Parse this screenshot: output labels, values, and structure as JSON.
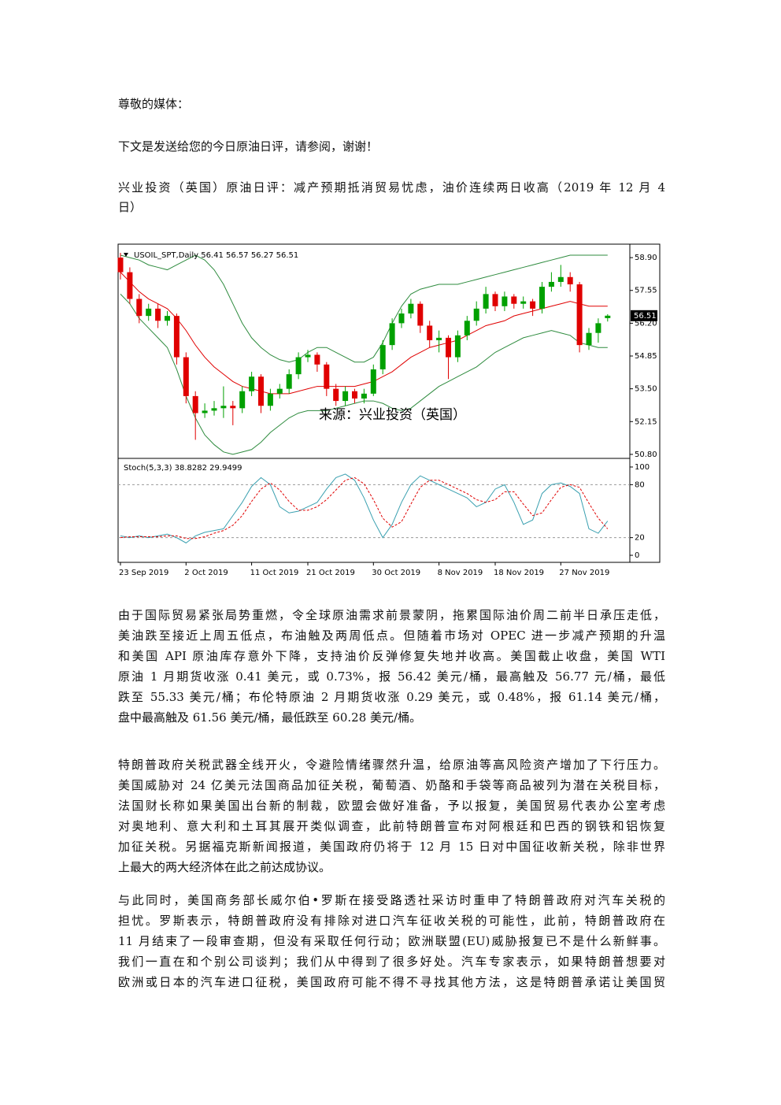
{
  "paragraphs": [
    [
      "尊敬的媒体："
    ],
    [
      "下文是发送给您的今日原油日评，请参阅，谢谢！"
    ],
    [
      "兴业投资（英国）原油日评：减产预期抵消贸易忧虑，油价连续两日收高（2019 年 12 月 4",
      "日）"
    ]
  ],
  "chart": {
    "type": "candlestick",
    "header": "USOIL_SPT,Daily  56.41 56.57 56.27 56.51",
    "source": "来源：兴业投资（英国）",
    "ylim": [
      50.7,
      59.39
    ],
    "yticks": [
      {
        "value": 58.9,
        "label": "58.90"
      },
      57.55,
      {
        "value": 56.2,
        "label": "56.20"
      },
      54.85,
      {
        "value": 53.5,
        "label": "53.50"
      },
      52.15,
      {
        "value": 50.8,
        "label": "50.80"
      }
    ],
    "xticks": [
      {
        "value": 0,
        "label": "23 Sep 2019"
      },
      {
        "value": 7,
        "label": "2 Oct 2019"
      },
      {
        "value": 14,
        "label": "11 Oct 2019"
      },
      {
        "value": 20,
        "label": "21 Oct 2019"
      },
      {
        "value": 27,
        "label": "30 Oct 2019"
      },
      {
        "value": 34,
        "label": "8 Nov 2019"
      },
      {
        "value": 40,
        "label": "18 Nov 2019"
      },
      {
        "value": 47,
        "label": "27 Nov 2019"
      }
    ],
    "up_color": "#00a000",
    "down_color": "#e00000",
    "candles": [
      [
        58.9,
        59.1,
        58.0,
        58.3
      ],
      [
        58.3,
        58.5,
        57.0,
        57.2
      ],
      [
        57.2,
        57.4,
        56.2,
        56.5
      ],
      [
        56.5,
        57.0,
        56.3,
        56.8
      ],
      [
        56.8,
        57.0,
        56.0,
        56.3
      ],
      [
        56.3,
        56.7,
        56.1,
        56.5
      ],
      [
        56.5,
        56.6,
        54.5,
        54.8
      ],
      [
        54.8,
        55.0,
        52.9,
        53.2
      ],
      [
        53.2,
        53.4,
        51.4,
        52.5
      ],
      [
        52.5,
        52.9,
        52.3,
        52.6
      ],
      [
        52.6,
        53.0,
        52.4,
        52.7
      ],
      [
        52.7,
        53.6,
        52.3,
        52.8
      ],
      [
        52.8,
        53.0,
        52.0,
        52.7
      ],
      [
        52.7,
        53.6,
        52.5,
        53.4
      ],
      [
        53.4,
        54.2,
        53.2,
        54.0
      ],
      [
        54.0,
        54.1,
        52.5,
        52.8
      ],
      [
        52.8,
        53.5,
        52.6,
        53.3
      ],
      [
        53.3,
        53.7,
        53.1,
        53.5
      ],
      [
        53.5,
        54.3,
        53.3,
        54.1
      ],
      [
        54.1,
        55.0,
        53.9,
        54.8
      ],
      [
        54.8,
        55.1,
        54.6,
        54.9
      ],
      [
        54.9,
        55.0,
        54.2,
        54.5
      ],
      [
        54.5,
        54.6,
        53.2,
        53.5
      ],
      [
        53.5,
        53.7,
        52.8,
        53.0
      ],
      [
        53.0,
        53.6,
        52.8,
        53.4
      ],
      [
        53.4,
        53.5,
        52.9,
        53.1
      ],
      [
        53.1,
        53.5,
        52.9,
        53.3
      ],
      [
        53.3,
        54.5,
        53.2,
        54.3
      ],
      [
        54.3,
        55.5,
        54.1,
        55.3
      ],
      [
        55.3,
        56.4,
        55.1,
        56.2
      ],
      [
        56.2,
        56.8,
        56.0,
        56.6
      ],
      [
        56.6,
        57.2,
        56.4,
        57.0
      ],
      [
        57.0,
        57.1,
        55.8,
        56.1
      ],
      [
        56.1,
        56.3,
        55.2,
        55.5
      ],
      [
        55.5,
        55.9,
        55.0,
        55.6
      ],
      [
        55.6,
        55.7,
        53.9,
        54.8
      ],
      [
        54.8,
        55.9,
        54.6,
        55.7
      ],
      [
        55.7,
        56.5,
        55.5,
        56.3
      ],
      [
        56.3,
        57.1,
        56.1,
        56.8
      ],
      [
        56.8,
        57.7,
        56.6,
        57.4
      ],
      [
        57.4,
        57.5,
        56.7,
        56.9
      ],
      [
        56.9,
        57.5,
        56.7,
        57.3
      ],
      [
        57.3,
        57.4,
        56.8,
        57.0
      ],
      [
        57.0,
        57.3,
        56.8,
        57.1
      ],
      [
        57.1,
        57.2,
        56.5,
        56.8
      ],
      [
        56.8,
        57.9,
        56.6,
        57.7
      ],
      [
        57.7,
        58.3,
        57.5,
        57.9
      ],
      [
        57.9,
        58.6,
        57.7,
        58.1
      ],
      [
        58.1,
        58.3,
        57.5,
        57.8
      ],
      [
        57.8,
        57.9,
        55.0,
        55.3
      ],
      [
        55.3,
        56.0,
        55.1,
        55.8
      ],
      [
        55.8,
        56.4,
        55.4,
        56.2
      ],
      [
        56.41,
        56.57,
        56.27,
        56.51
      ]
    ],
    "bands": [
      {
        "color": "#e00000",
        "values": [
          58.3,
          57.9,
          57.5,
          57.2,
          57.0,
          56.8,
          56.4,
          55.9,
          55.3,
          54.8,
          54.4,
          54.1,
          53.8,
          53.6,
          53.5,
          53.4,
          53.3,
          53.3,
          53.3,
          53.4,
          53.5,
          53.6,
          53.6,
          53.6,
          53.6,
          53.6,
          53.7,
          53.8,
          54.0,
          54.2,
          54.5,
          54.8,
          55.0,
          55.2,
          55.3,
          55.4,
          55.5,
          55.7,
          55.9,
          56.1,
          56.2,
          56.3,
          56.5,
          56.6,
          56.7,
          56.8,
          56.9,
          57.0,
          57.1,
          57.0,
          56.9,
          56.9,
          56.9
        ]
      },
      {
        "color": "#2e8b3e",
        "values": [
          59.0,
          58.9,
          58.8,
          58.6,
          58.5,
          58.4,
          58.6,
          58.8,
          59.0,
          58.8,
          58.4,
          57.8,
          57.0,
          56.2,
          55.6,
          55.2,
          54.9,
          54.7,
          54.6,
          54.7,
          55.0,
          55.2,
          55.2,
          55.0,
          54.8,
          54.6,
          54.6,
          54.8,
          55.4,
          56.2,
          56.9,
          57.4,
          57.6,
          57.7,
          57.8,
          57.8,
          57.8,
          57.9,
          58.0,
          58.1,
          58.2,
          58.3,
          58.4,
          58.5,
          58.6,
          58.7,
          58.8,
          58.9,
          59.0,
          59.0,
          59.0,
          59.0,
          59.0
        ]
      },
      {
        "color": "#2e8b3e",
        "values": [
          57.4,
          57.0,
          56.4,
          56.0,
          55.6,
          55.2,
          54.3,
          53.2,
          52.3,
          51.6,
          51.2,
          50.9,
          50.8,
          50.9,
          51.0,
          51.3,
          51.7,
          52.0,
          52.3,
          52.5,
          52.6,
          52.6,
          52.6,
          52.7,
          52.8,
          52.9,
          53.0,
          53.0,
          52.9,
          52.7,
          52.6,
          52.7,
          53.0,
          53.3,
          53.6,
          53.8,
          54.0,
          54.2,
          54.4,
          54.7,
          55.0,
          55.2,
          55.4,
          55.6,
          55.7,
          55.8,
          55.9,
          55.8,
          55.7,
          55.4,
          55.3,
          55.2,
          55.2
        ]
      }
    ],
    "stoch": {
      "header": "Stoch(5,3,3) 38.8282 29.9499",
      "ylim": [
        -6.2,
        107.1
      ],
      "yticks": [
        100,
        80,
        20,
        0
      ],
      "levels": [
        80,
        20
      ],
      "series": [
        {
          "color": "#3aa0b0",
          "dash": false,
          "values": [
            22,
            20,
            22,
            20,
            22,
            24,
            20,
            14,
            22,
            26,
            28,
            30,
            45,
            60,
            78,
            88,
            80,
            55,
            48,
            50,
            55,
            60,
            75,
            88,
            92,
            85,
            65,
            40,
            20,
            35,
            60,
            80,
            90,
            85,
            80,
            75,
            70,
            65,
            55,
            60,
            75,
            80,
            60,
            35,
            40,
            70,
            80,
            82,
            78,
            70,
            30,
            25,
            38.8282
          ]
        },
        {
          "color": "#e00000",
          "dash": true,
          "values": [
            20,
            21,
            21,
            21,
            21,
            22,
            22,
            19,
            19,
            21,
            25,
            28,
            34,
            45,
            61,
            75,
            82,
            74,
            61,
            51,
            51,
            55,
            63,
            74,
            85,
            88,
            81,
            63,
            42,
            32,
            38,
            58,
            77,
            85,
            85,
            80,
            75,
            70,
            63,
            60,
            63,
            72,
            72,
            58,
            45,
            48,
            63,
            77,
            80,
            77,
            59,
            42,
            29.9499
          ]
        }
      ]
    }
  },
  "body": [
    [
      "由于国际贸易紧张局势重燃，令全球原油需求前景蒙阴，拖累国际油价周二前半日承压走低，",
      "美油跌至接近上周五低点，布油触及两周低点。但随着市场对 OPEC 进一步减产预期的升温",
      "和美国 API 原油库存意外下降，支持油价反弹修复失地并收高。美国截止收盘，美国 WTI",
      "原油 1 月期货收涨 0.41 美元，或 0.73%，报 56.42 美元/桶，最高触及 56.77 元/桶，最低",
      "跌至 55.33 美元/桶；布伦特原油 2 月期货收涨 0.29 美元，或 0.48%，报 61.14 美元/桶，",
      "盘中最高触及 61.56 美元/桶，最低跌至 60.28 美元/桶。"
    ],
    [
      "特朗普政府关税武器全线开火，令避险情绪骤然升温，给原油等高风险资产增加了下行压力。",
      "美国威胁对 24 亿美元法国商品加征关税，葡萄酒、奶酪和手袋等商品被列为潜在关税目标，",
      "法国财长称如果美国出台新的制裁，欧盟会做好准备，予以报复，美国贸易代表办公室考虑",
      "对奥地利、意大利和土耳其展开类似调查，此前特朗普宣布对阿根廷和巴西的钢铁和铝恢复",
      "加征关税。另据福克斯新闻报道，美国政府仍将于 12 月 15 日对中国征收新关税，除非世界",
      "上最大的两大经济体在此之前达成协议。"
    ],
    [
      "与此同时，美国商务部长威尔伯•罗斯在接受路透社采访时重申了特朗普政府对汽车关税的",
      "担忧。罗斯表示，特朗普政府没有排除对进口汽车征收关税的可能性，此前，特朗普政府在",
      "11 月结束了一段审查期，但没有采取任何行动；欧洲联盟(EU)威胁报复已不是什么新鲜事。",
      "我们一直在和个别公司谈判；我们从中得到了很多好处。汽车专家表示，如果特朗普想要对",
      "欧洲或日本的汽车进口征税，美国政府可能不得不寻找其他方法，这是特朗普承诺让美国贸"
    ]
  ]
}
